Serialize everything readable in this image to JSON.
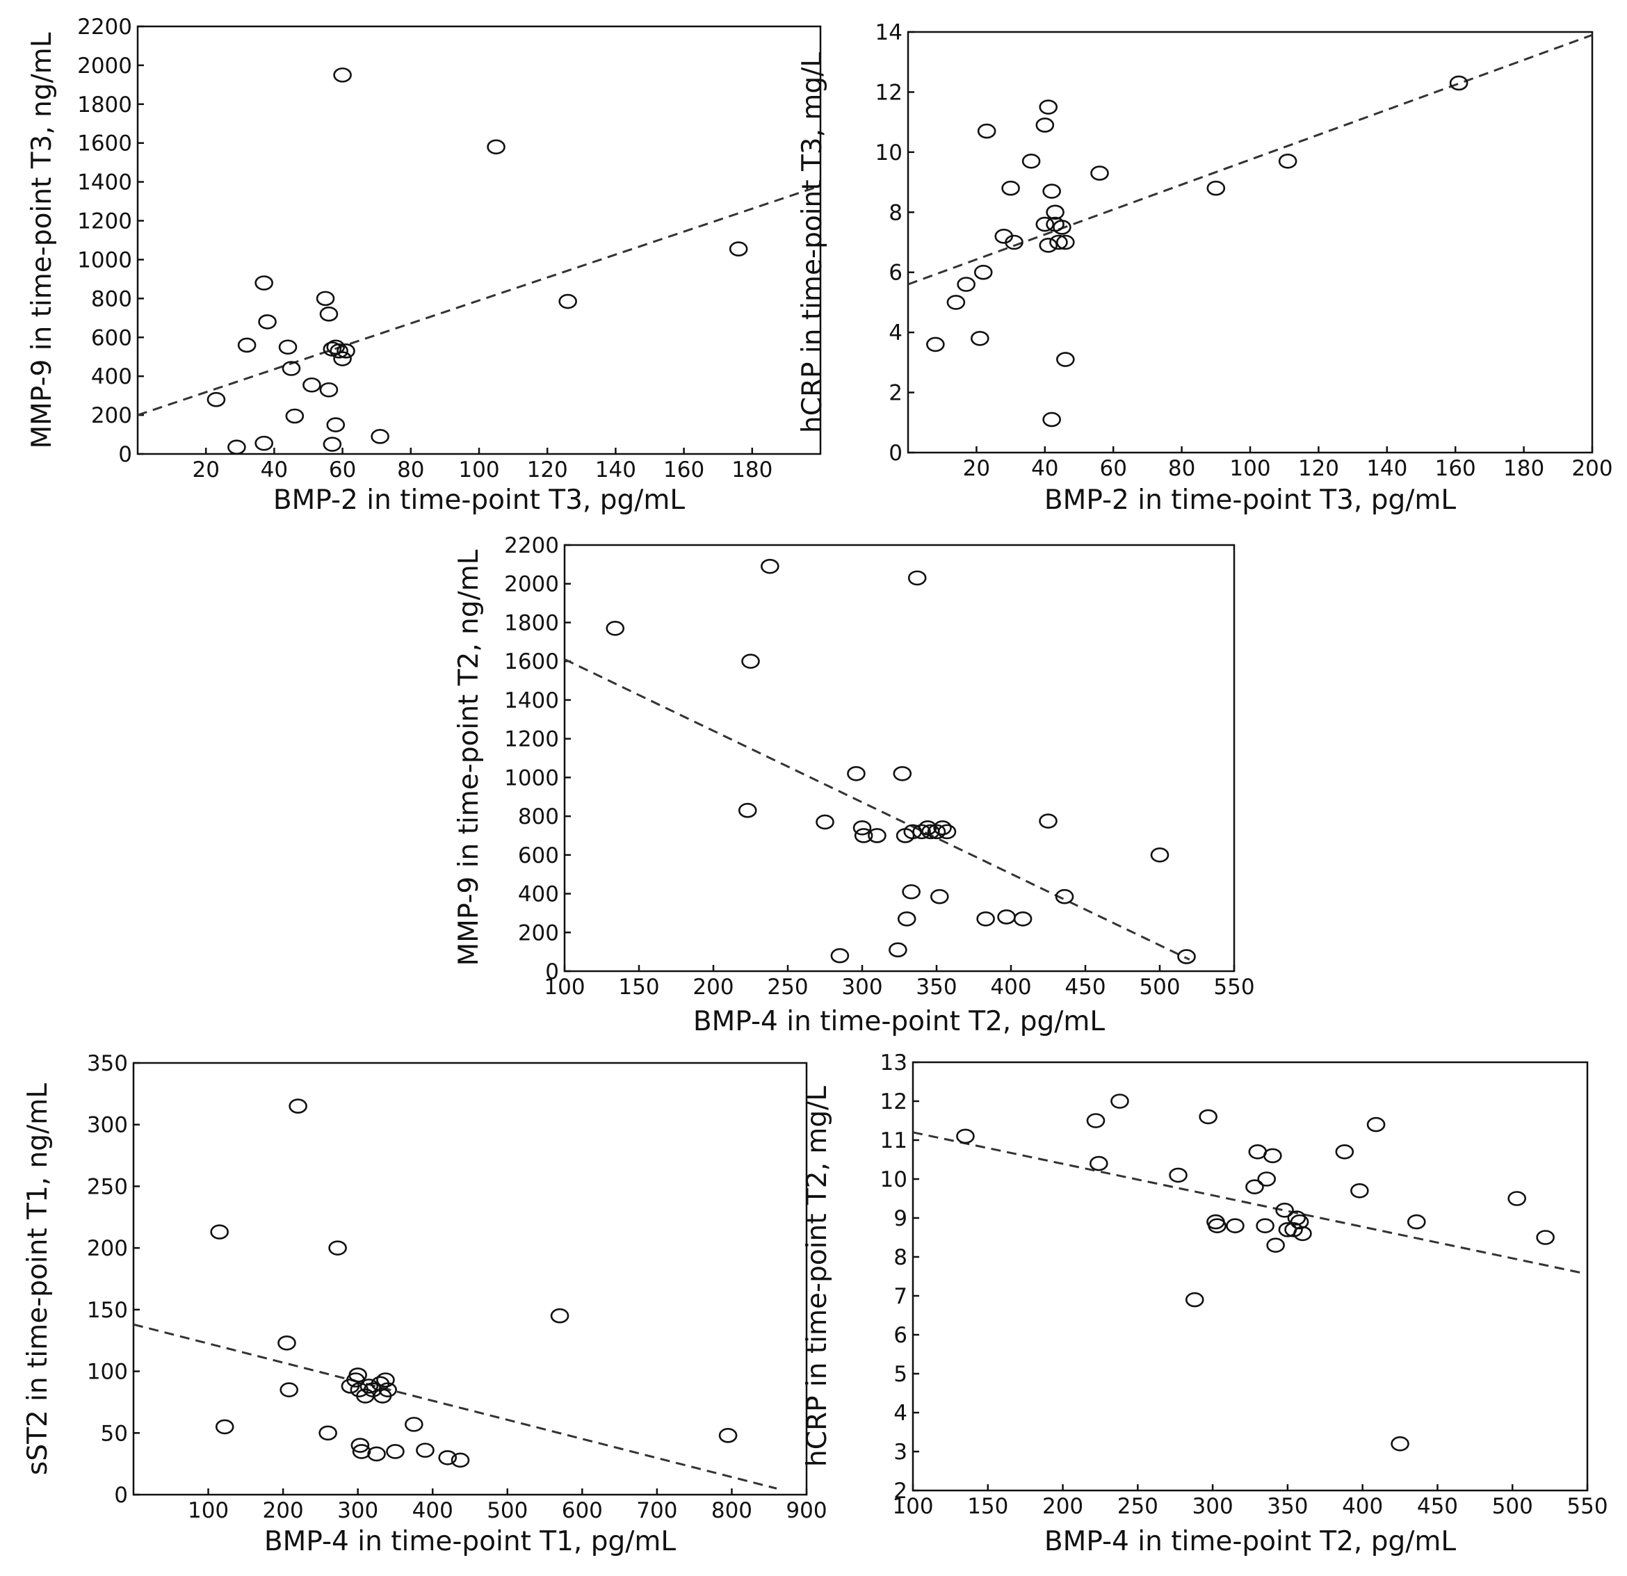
{
  "chart_data": [
    {
      "type": "scatter",
      "xlabel": "BMP-2 in time-point T3, pg/mL",
      "ylabel": "MMP-9 in time-point T3, ng/mL",
      "xlim": [
        0,
        200
      ],
      "ylim": [
        0,
        2200
      ],
      "xticks": [
        20,
        40,
        60,
        80,
        100,
        120,
        140,
        160,
        180
      ],
      "yticks": [
        0,
        200,
        400,
        600,
        800,
        1000,
        1200,
        1400,
        1600,
        1800,
        2000,
        2200
      ],
      "trendline": [
        [
          0,
          200
        ],
        [
          200,
          1380
        ]
      ],
      "points": [
        [
          23,
          280
        ],
        [
          29,
          35
        ],
        [
          32,
          560
        ],
        [
          37,
          55
        ],
        [
          37,
          880
        ],
        [
          38,
          680
        ],
        [
          44,
          550
        ],
        [
          45,
          440
        ],
        [
          46,
          195
        ],
        [
          51,
          355
        ],
        [
          55,
          800
        ],
        [
          56,
          330
        ],
        [
          56,
          720
        ],
        [
          57,
          50
        ],
        [
          57,
          540
        ],
        [
          58,
          550
        ],
        [
          58,
          150
        ],
        [
          59,
          530
        ],
        [
          60,
          1950
        ],
        [
          60,
          490
        ],
        [
          61,
          530
        ],
        [
          71,
          90
        ],
        [
          105,
          1580
        ],
        [
          126,
          785
        ],
        [
          176,
          1055
        ]
      ]
    },
    {
      "type": "scatter",
      "xlabel": "BMP-2 in time-point T3, pg/mL",
      "ylabel": "hCRP in time-point T3, mg/L",
      "xlim": [
        0,
        200
      ],
      "ylim": [
        0,
        14
      ],
      "xticks": [
        20,
        40,
        60,
        80,
        100,
        120,
        140,
        160,
        180,
        200
      ],
      "yticks": [
        0,
        2,
        4,
        6,
        8,
        10,
        12,
        14
      ],
      "trendline": [
        [
          0,
          5.6
        ],
        [
          200,
          13.9
        ]
      ],
      "points": [
        [
          8,
          3.6
        ],
        [
          14,
          5.0
        ],
        [
          17,
          5.6
        ],
        [
          21,
          3.8
        ],
        [
          22,
          6.0
        ],
        [
          23,
          10.7
        ],
        [
          28,
          7.2
        ],
        [
          30,
          8.8
        ],
        [
          31,
          7.0
        ],
        [
          36,
          9.7
        ],
        [
          40,
          10.9
        ],
        [
          40,
          7.6
        ],
        [
          41,
          6.9
        ],
        [
          41,
          11.5
        ],
        [
          42,
          8.7
        ],
        [
          42,
          1.1
        ],
        [
          43,
          7.6
        ],
        [
          43,
          8.0
        ],
        [
          44,
          7.0
        ],
        [
          45,
          7.5
        ],
        [
          46,
          7.0
        ],
        [
          46,
          3.1
        ],
        [
          56,
          9.3
        ],
        [
          90,
          8.8
        ],
        [
          111,
          9.7
        ],
        [
          161,
          12.3
        ]
      ]
    },
    {
      "type": "scatter",
      "xlabel": "BMP-4 in time-point T2, pg/mL",
      "ylabel": "MMP-9 in time-point T2, ng/mL",
      "xlim": [
        100,
        550
      ],
      "ylim": [
        0,
        2200
      ],
      "xticks": [
        100,
        150,
        200,
        250,
        300,
        350,
        400,
        450,
        500,
        550
      ],
      "yticks": [
        0,
        200,
        400,
        600,
        800,
        1000,
        1200,
        1400,
        1600,
        1800,
        2000,
        2200
      ],
      "trendline": [
        [
          100,
          1610
        ],
        [
          520,
          60
        ]
      ],
      "points": [
        [
          134,
          1770
        ],
        [
          223,
          830
        ],
        [
          225,
          1600
        ],
        [
          238,
          2090
        ],
        [
          275,
          770
        ],
        [
          285,
          80
        ],
        [
          296,
          1020
        ],
        [
          300,
          740
        ],
        [
          301,
          700
        ],
        [
          310,
          700
        ],
        [
          324,
          110
        ],
        [
          327,
          1020
        ],
        [
          329,
          700
        ],
        [
          330,
          270
        ],
        [
          333,
          410
        ],
        [
          334,
          720
        ],
        [
          337,
          2030
        ],
        [
          340,
          720
        ],
        [
          344,
          740
        ],
        [
          346,
          720
        ],
        [
          350,
          720
        ],
        [
          352,
          385
        ],
        [
          354,
          740
        ],
        [
          357,
          720
        ],
        [
          383,
          270
        ],
        [
          397,
          280
        ],
        [
          408,
          270
        ],
        [
          425,
          775
        ],
        [
          436,
          385
        ],
        [
          500,
          600
        ],
        [
          518,
          75
        ]
      ]
    },
    {
      "type": "scatter",
      "xlabel": "BMP-4 in time-point T1, pg/mL",
      "ylabel": "sST2 in time-point T1, ng/mL",
      "xlim": [
        0,
        900
      ],
      "ylim": [
        0,
        350
      ],
      "xticks": [
        100,
        200,
        300,
        400,
        500,
        600,
        700,
        800,
        900
      ],
      "yticks": [
        0,
        50,
        100,
        150,
        200,
        250,
        300,
        350
      ],
      "trendline": [
        [
          0,
          138
        ],
        [
          860,
          5
        ]
      ],
      "points": [
        [
          115,
          213
        ],
        [
          122,
          55
        ],
        [
          205,
          123
        ],
        [
          208,
          85
        ],
        [
          220,
          315
        ],
        [
          260,
          50
        ],
        [
          273,
          200
        ],
        [
          290,
          88
        ],
        [
          297,
          93
        ],
        [
          300,
          97
        ],
        [
          302,
          85
        ],
        [
          303,
          40
        ],
        [
          305,
          35
        ],
        [
          310,
          80
        ],
        [
          315,
          88
        ],
        [
          320,
          85
        ],
        [
          325,
          33
        ],
        [
          330,
          90
        ],
        [
          333,
          80
        ],
        [
          337,
          93
        ],
        [
          340,
          85
        ],
        [
          350,
          35
        ],
        [
          375,
          57
        ],
        [
          390,
          36
        ],
        [
          420,
          30
        ],
        [
          437,
          28
        ],
        [
          570,
          145
        ],
        [
          795,
          48
        ]
      ]
    },
    {
      "type": "scatter",
      "xlabel": "BMP-4 in time-point T2, pg/mL",
      "ylabel": "hCRP in time-point T2, mg/L",
      "xlim": [
        100,
        550
      ],
      "ylim": [
        2,
        13
      ],
      "xticks": [
        100,
        150,
        200,
        250,
        300,
        350,
        400,
        450,
        500,
        550
      ],
      "yticks": [
        2,
        3,
        4,
        5,
        6,
        7,
        8,
        9,
        10,
        11,
        12,
        13
      ],
      "trendline": [
        [
          100,
          11.2
        ],
        [
          545,
          7.6
        ]
      ],
      "points": [
        [
          135,
          11.1
        ],
        [
          222,
          11.5
        ],
        [
          224,
          10.4
        ],
        [
          238,
          12.0
        ],
        [
          277,
          10.1
        ],
        [
          288,
          6.9
        ],
        [
          297,
          11.6
        ],
        [
          302,
          8.9
        ],
        [
          303,
          8.8
        ],
        [
          315,
          8.8
        ],
        [
          328,
          9.8
        ],
        [
          330,
          10.7
        ],
        [
          335,
          8.8
        ],
        [
          336,
          10.0
        ],
        [
          340,
          10.6
        ],
        [
          342,
          8.3
        ],
        [
          348,
          9.2
        ],
        [
          350,
          8.7
        ],
        [
          354,
          8.7
        ],
        [
          356,
          9.0
        ],
        [
          358,
          8.9
        ],
        [
          360,
          8.6
        ],
        [
          388,
          10.7
        ],
        [
          398,
          9.7
        ],
        [
          409,
          11.4
        ],
        [
          425,
          3.2
        ],
        [
          436,
          8.9
        ],
        [
          503,
          9.5
        ],
        [
          522,
          8.5
        ]
      ]
    }
  ]
}
